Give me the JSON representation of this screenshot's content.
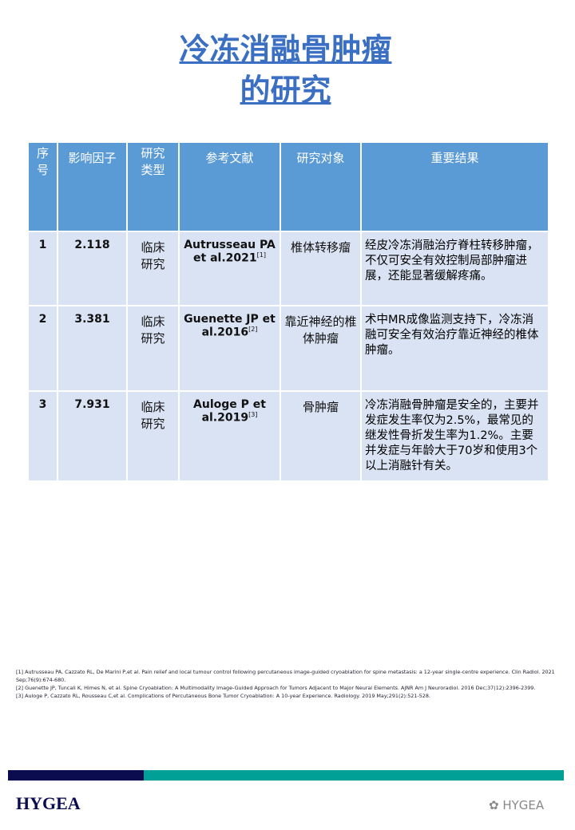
{
  "title": {
    "line1": "冷冻消融骨肿瘤",
    "line2": "的研究"
  },
  "table": {
    "headers": [
      "序号",
      "影响因子",
      "研究类型",
      "参考文献",
      "研究对象",
      "重要结果"
    ],
    "rows": [
      {
        "no": "1",
        "if": "2.118",
        "type": "临床研究",
        "ref": "Autrusseau PA et al.2021",
        "sup": "[1]",
        "subject": "椎体转移瘤",
        "result": "经皮冷冻消融治疗脊柱转移肿瘤，不仅可安全有效控制局部肿瘤进展，还能显著缓解疼痛。"
      },
      {
        "no": "2",
        "if": "3.381",
        "type": "临床研究",
        "ref": "Guenette JP et al.2016",
        "sup": "[2]",
        "subject": "靠近神经的椎体肿瘤",
        "result": "术中MR成像监测支持下，冷冻消融可安全有效治疗靠近神经的椎体肿瘤。"
      },
      {
        "no": "3",
        "if": "7.931",
        "type": "临床研究",
        "ref": "Auloge P et al.2019",
        "sup": "[3]",
        "subject": "骨肿瘤",
        "result": "冷冻消融骨肿瘤是安全的，主要并发症发生率仅为2.5%，最常见的继发性骨折发生率为1.2%。主要并发症与年龄大于70岁和使用3个以上消融针有关。"
      }
    ]
  },
  "references": [
    "[1] Autrusseau PA, Cazzato RL, De Marini P,et al. Pain relief and local tumour control following percutaneous image-guided cryoablation for spine metastasis: a 12-year single-centre experience. Clin Radiol. 2021 Sep;76(9):674-680.",
    "[2] Guenette JP, Tuncali K, Himes N, et al. Spine Cryoablation: A Multimodality Image-Guided Approach for Tumors Adjacent to Major Neural Elements. AJNR Am J Neuroradiol. 2016 Dec;37(12):2396-2399.",
    "[3] Auloge P, Cazzato RL, Rousseau C,et al. Complications of Percutaneous Bone Tumor Cryoablation: A 10-year Experience. Radiology. 2019 May;291(2):521-528."
  ],
  "footer": {
    "logo": "HYGEA",
    "watermark": "HYGEA",
    "colors": {
      "navy": "#0b0b50",
      "teal": "#00a096"
    }
  }
}
